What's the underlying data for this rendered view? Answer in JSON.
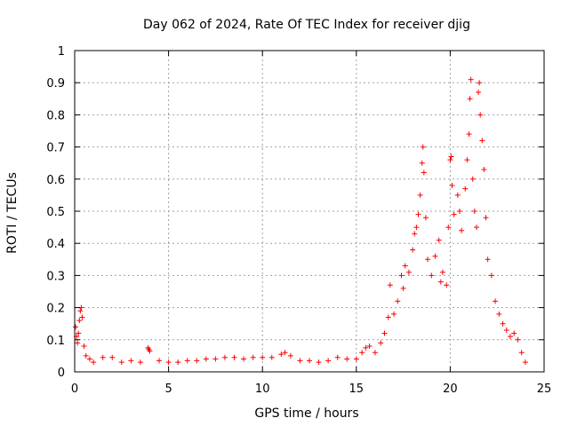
{
  "chart_data": {
    "type": "scatter",
    "title": "Day 062 of 2024, Rate Of TEC Index for receiver djig",
    "xlabel": "GPS time / hours",
    "ylabel": "ROTI / TECUs",
    "xlim": [
      0,
      25
    ],
    "ylim": [
      0,
      1
    ],
    "xticks": [
      0,
      5,
      10,
      15,
      20,
      25
    ],
    "yticks": [
      0,
      0.1,
      0.2,
      0.3,
      0.4,
      0.5,
      0.6,
      0.7,
      0.8,
      0.9,
      1
    ],
    "grid": true,
    "marker": "+",
    "color": "#ff0000",
    "series": [
      {
        "points": [
          [
            0.05,
            0.14
          ],
          [
            0.1,
            0.11
          ],
          [
            0.15,
            0.09
          ],
          [
            0.2,
            0.12
          ],
          [
            0.25,
            0.16
          ],
          [
            0.3,
            0.19
          ],
          [
            0.35,
            0.2
          ],
          [
            0.4,
            0.17
          ],
          [
            0.5,
            0.08
          ],
          [
            0.6,
            0.05
          ],
          [
            0.8,
            0.04
          ],
          [
            1.0,
            0.03
          ],
          [
            1.5,
            0.045
          ],
          [
            2.0,
            0.045
          ],
          [
            2.5,
            0.03
          ],
          [
            3.0,
            0.035
          ],
          [
            3.5,
            0.03
          ],
          [
            3.9,
            0.075
          ],
          [
            3.95,
            0.07
          ],
          [
            4.0,
            0.065
          ],
          [
            4.5,
            0.035
          ],
          [
            5.0,
            0.03
          ],
          [
            5.5,
            0.03
          ],
          [
            6.0,
            0.035
          ],
          [
            6.5,
            0.035
          ],
          [
            7.0,
            0.04
          ],
          [
            7.5,
            0.04
          ],
          [
            8.0,
            0.045
          ],
          [
            8.5,
            0.045
          ],
          [
            9.0,
            0.04
          ],
          [
            9.5,
            0.045
          ],
          [
            10.0,
            0.045
          ],
          [
            10.5,
            0.045
          ],
          [
            11.0,
            0.055
          ],
          [
            11.2,
            0.06
          ],
          [
            11.5,
            0.05
          ],
          [
            12.0,
            0.035
          ],
          [
            12.5,
            0.035
          ],
          [
            13.0,
            0.03
          ],
          [
            13.5,
            0.035
          ],
          [
            14.0,
            0.045
          ],
          [
            14.5,
            0.04
          ],
          [
            15.0,
            0.04
          ],
          [
            15.3,
            0.06
          ],
          [
            15.5,
            0.075
          ],
          [
            15.7,
            0.08
          ],
          [
            16.0,
            0.06
          ],
          [
            16.3,
            0.09
          ],
          [
            16.5,
            0.12
          ],
          [
            16.7,
            0.17
          ],
          [
            16.8,
            0.27
          ],
          [
            17.0,
            0.18
          ],
          [
            17.2,
            0.22
          ],
          [
            17.4,
            0.3
          ],
          [
            17.5,
            0.26
          ],
          [
            17.6,
            0.33
          ],
          [
            17.8,
            0.31
          ],
          [
            18.0,
            0.38
          ],
          [
            18.1,
            0.43
          ],
          [
            18.2,
            0.45
          ],
          [
            18.3,
            0.49
          ],
          [
            18.4,
            0.55
          ],
          [
            18.5,
            0.65
          ],
          [
            18.55,
            0.7
          ],
          [
            18.6,
            0.62
          ],
          [
            18.7,
            0.48
          ],
          [
            18.8,
            0.35
          ],
          [
            19.0,
            0.3
          ],
          [
            19.2,
            0.36
          ],
          [
            19.4,
            0.41
          ],
          [
            19.5,
            0.28
          ],
          [
            19.6,
            0.31
          ],
          [
            19.8,
            0.27
          ],
          [
            19.9,
            0.45
          ],
          [
            20.0,
            0.66
          ],
          [
            20.05,
            0.67
          ],
          [
            20.1,
            0.58
          ],
          [
            20.2,
            0.49
          ],
          [
            20.4,
            0.55
          ],
          [
            20.5,
            0.5
          ],
          [
            20.6,
            0.44
          ],
          [
            20.8,
            0.57
          ],
          [
            20.9,
            0.66
          ],
          [
            21.0,
            0.74
          ],
          [
            21.05,
            0.85
          ],
          [
            21.1,
            0.91
          ],
          [
            21.2,
            0.6
          ],
          [
            21.3,
            0.5
          ],
          [
            21.4,
            0.45
          ],
          [
            21.5,
            0.87
          ],
          [
            21.55,
            0.9
          ],
          [
            21.6,
            0.8
          ],
          [
            21.7,
            0.72
          ],
          [
            21.8,
            0.63
          ],
          [
            21.9,
            0.48
          ],
          [
            22.0,
            0.35
          ],
          [
            22.2,
            0.3
          ],
          [
            22.4,
            0.22
          ],
          [
            22.6,
            0.18
          ],
          [
            22.8,
            0.15
          ],
          [
            23.0,
            0.13
          ],
          [
            23.2,
            0.11
          ],
          [
            23.4,
            0.12
          ],
          [
            23.6,
            0.1
          ],
          [
            23.8,
            0.06
          ],
          [
            24.0,
            0.03
          ]
        ]
      }
    ]
  }
}
